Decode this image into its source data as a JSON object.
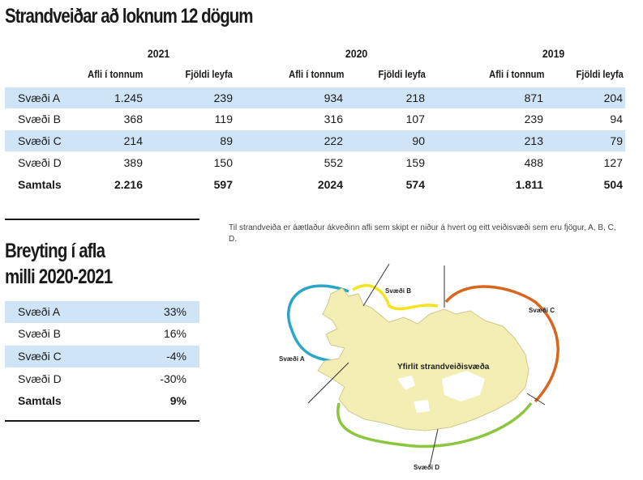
{
  "title": "Strandveiðar að loknum 12 dögum",
  "years": [
    "2021",
    "2020",
    "2019"
  ],
  "col_catch": "Afli í tonnum",
  "col_permits": "Fjöldi leyfa",
  "rows": [
    {
      "label": "Svæði A",
      "c2021": "1.245",
      "p2021": "239",
      "c2020": "934",
      "p2020": "218",
      "c2019": "871",
      "p2019": "204"
    },
    {
      "label": "Svæði B",
      "c2021": "368",
      "p2021": "119",
      "c2020": "316",
      "p2020": "107",
      "c2019": "239",
      "p2019": "94"
    },
    {
      "label": "Svæði C",
      "c2021": "214",
      "p2021": "89",
      "c2020": "222",
      "p2020": "90",
      "c2019": "213",
      "p2019": "79"
    },
    {
      "label": "Svæði D",
      "c2021": "389",
      "p2021": "150",
      "c2020": "552",
      "p2020": "159",
      "c2019": "488",
      "p2019": "127"
    },
    {
      "label": "Samtals",
      "c2021": "2.216",
      "p2021": "597",
      "c2020": "2024",
      "p2020": "574",
      "c2019": "1.811",
      "p2019": "504"
    }
  ],
  "change_title_line1": "Breyting í afla",
  "change_title_line2": "milli 2020-2021",
  "change_rows": [
    {
      "label": "Svæði A",
      "value": "33%"
    },
    {
      "label": "Svæði B",
      "value": "16%"
    },
    {
      "label": "Svæði C",
      "value": "-4%"
    },
    {
      "label": "Svæði D",
      "value": "-30%"
    },
    {
      "label": "Samtals",
      "value": "9%"
    }
  ],
  "map": {
    "note": "Til strandveiða er áætlaður ákveðinn afli sem skipt er niður á hvert og eitt veiðisvæði sem eru fjögur, A, B, C, D.",
    "center_label": "Yfirlit strandveiðisvæða",
    "area_a": "Svæði A",
    "area_b": "Svæði B",
    "area_c": "Svæði C",
    "area_d": "Svæði D",
    "colors": {
      "land": "#f3efb4",
      "ice": "#ffffff",
      "area_a": "#2aa7c8",
      "area_b": "#f2e51e",
      "area_c": "#d8661e",
      "area_d": "#8cc63f",
      "band": "#cfe4f6"
    }
  }
}
